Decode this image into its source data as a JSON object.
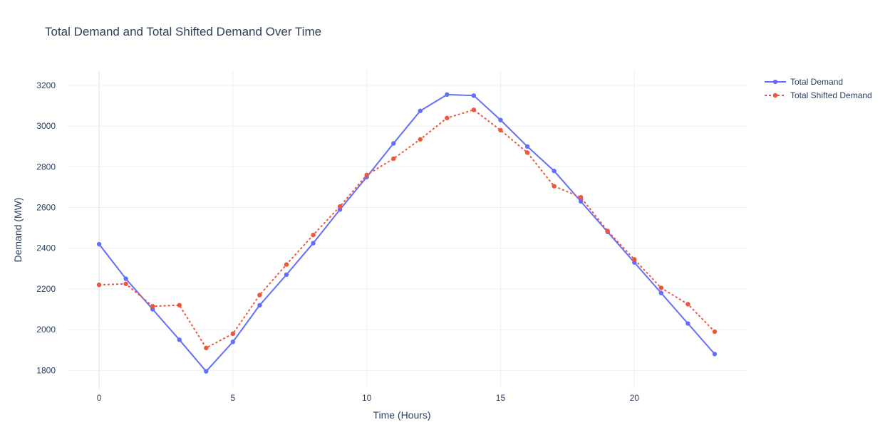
{
  "chart_data": {
    "type": "line",
    "title": "Total Demand and Total Shifted Demand Over Time",
    "xlabel": "Time (Hours)",
    "ylabel": "Demand (MW)",
    "x": [
      0,
      1,
      2,
      3,
      4,
      5,
      6,
      7,
      8,
      9,
      10,
      11,
      12,
      13,
      14,
      15,
      16,
      17,
      18,
      19,
      20,
      21,
      22,
      23
    ],
    "xlim": [
      -1.2,
      24.2
    ],
    "ylim": [
      1710,
      3270
    ],
    "x_ticks": [
      0,
      5,
      10,
      15,
      20
    ],
    "y_ticks": [
      1800,
      2000,
      2200,
      2400,
      2600,
      2800,
      3000,
      3200
    ],
    "grid": true,
    "legend_position": "top-right",
    "series": [
      {
        "name": "Total Demand",
        "color": "#636efa",
        "dash": "solid",
        "values": [
          2420,
          2250,
          2100,
          1950,
          1795,
          1940,
          2120,
          2270,
          2425,
          2590,
          2750,
          2915,
          3075,
          3155,
          3150,
          3030,
          2900,
          2780,
          2630,
          2480,
          2330,
          2180,
          2030,
          1880
        ]
      },
      {
        "name": "Total Shifted Demand",
        "color": "#ef553b",
        "dash": "dot",
        "values": [
          2220,
          2225,
          2115,
          2120,
          1910,
          1980,
          2170,
          2320,
          2465,
          2605,
          2760,
          2840,
          2935,
          3040,
          3080,
          2980,
          2870,
          2705,
          2650,
          2485,
          2345,
          2205,
          2125,
          1990
        ]
      }
    ]
  }
}
